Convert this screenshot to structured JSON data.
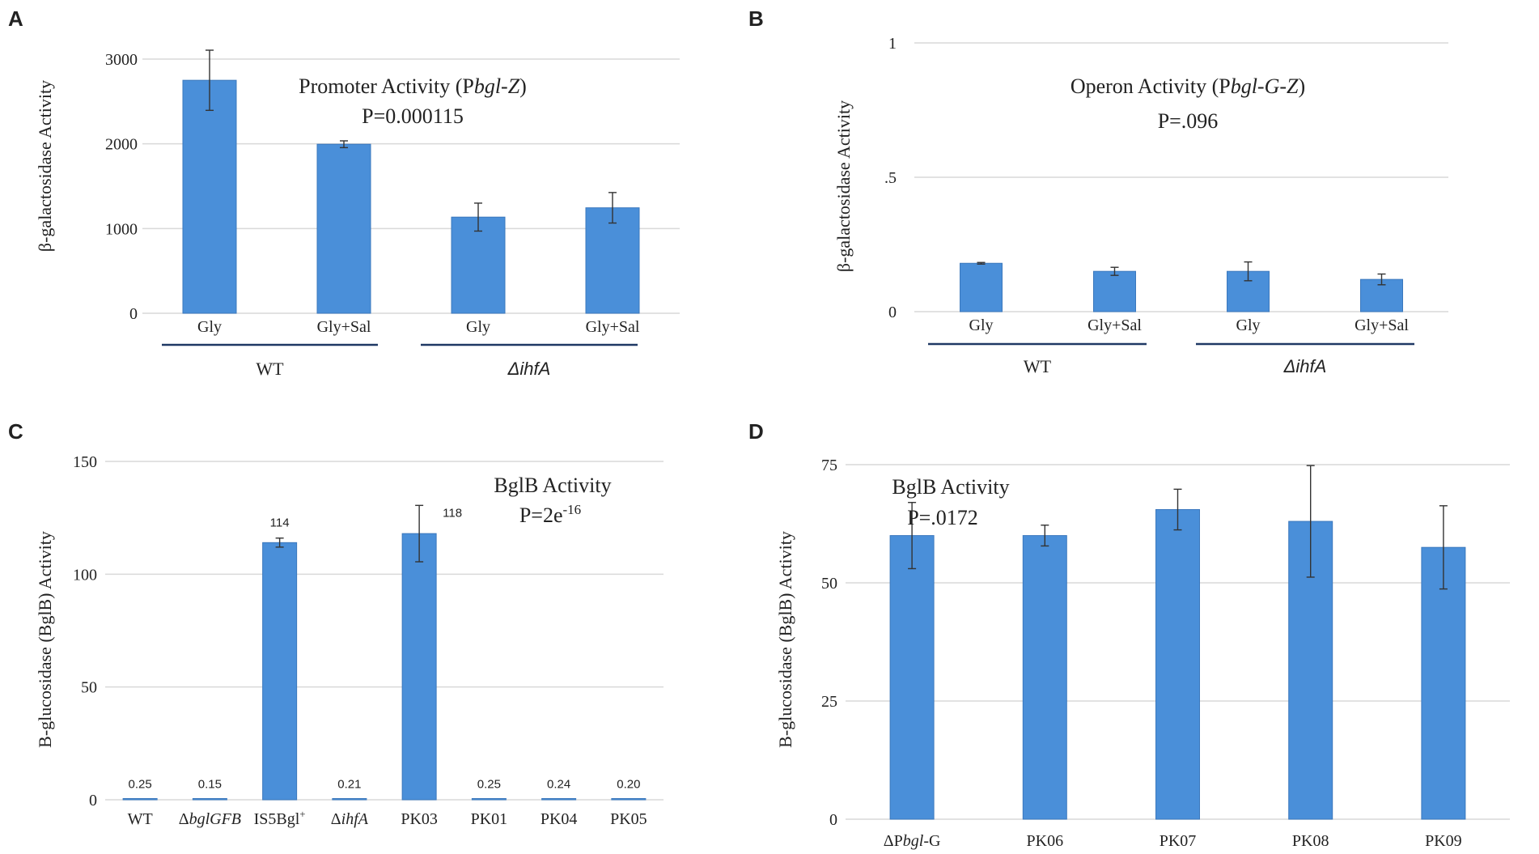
{
  "figure": {
    "panels": [
      {
        "letter": "A"
      },
      {
        "letter": "B"
      },
      {
        "letter": "C"
      },
      {
        "letter": "D"
      }
    ]
  },
  "colors": {
    "bar": "#4a8fd9",
    "bar_stroke": "#3b78bd",
    "grid": "#d9d9d9",
    "group_line": "#1f3864",
    "text": "#222222"
  },
  "chart_data": [
    {
      "panel": "A",
      "type": "bar",
      "title": "Promoter Activity (Pbgl-Z)",
      "title_parts": [
        "Promoter Activity (P",
        "bgl-Z",
        ")"
      ],
      "pvalue": "P=0.000115",
      "ylabel": "β-galactosidase Activity",
      "xlabel": "",
      "ylim": [
        0,
        3000
      ],
      "yticks": [
        0,
        1000,
        2000,
        3000
      ],
      "ytick_labels": [
        "0",
        "1000",
        "2000",
        "3000"
      ],
      "grid": true,
      "categories": [
        "Gly",
        "Gly+Sal",
        "Gly",
        "Gly+Sal"
      ],
      "values": [
        2750,
        1995,
        1135,
        1245
      ],
      "errors": [
        355,
        40,
        165,
        180
      ],
      "groups": [
        {
          "label": "WT",
          "italic": false,
          "members": [
            0,
            1
          ]
        },
        {
          "label": "ΔihfA",
          "italic": true,
          "members": [
            2,
            3
          ]
        }
      ]
    },
    {
      "panel": "B",
      "type": "bar",
      "title": "Operon Activity (Pbgl-G-Z)",
      "title_parts": [
        "Operon Activity (P",
        "bgl-G-Z",
        ")"
      ],
      "pvalue": "P=.096",
      "ylabel": "β-galactosidase Activity",
      "xlabel": "",
      "ylim": [
        0,
        1
      ],
      "yticks": [
        0,
        0.5,
        1
      ],
      "ytick_labels": [
        "0",
        ".5",
        "1"
      ],
      "grid": true,
      "categories": [
        "Gly",
        "Gly+Sal",
        "Gly",
        "Gly+Sal"
      ],
      "values": [
        0.18,
        0.15,
        0.15,
        0.12
      ],
      "errors": [
        0.003,
        0.015,
        0.035,
        0.02
      ],
      "groups": [
        {
          "label": "WT",
          "italic": false,
          "members": [
            0,
            1
          ]
        },
        {
          "label": "ΔihfA",
          "italic": true,
          "members": [
            2,
            3
          ]
        }
      ]
    },
    {
      "panel": "C",
      "type": "bar",
      "title": "BglB Activity",
      "pvalue_base": "P=2e",
      "pvalue_exp": "-16",
      "ylabel": "B-glucosidase (BglB) Activity",
      "xlabel": "",
      "ylim": [
        0,
        150
      ],
      "yticks": [
        0,
        50,
        100,
        150
      ],
      "ytick_labels": [
        "0",
        "50",
        "100",
        "150"
      ],
      "grid": true,
      "categories": [
        "WT",
        "ΔbglGFB",
        "IS5Bgl+",
        "ΔihfA",
        "PK03",
        "PK01",
        "PK04",
        "PK05"
      ],
      "category_parts": [
        {
          "pre": "WT",
          "it": "",
          "sup": ""
        },
        {
          "pre": "Δ",
          "it": "bglGFB",
          "sup": ""
        },
        {
          "pre": "IS5Bgl",
          "it": "",
          "sup": "+"
        },
        {
          "pre": "Δ",
          "it": "ihfA",
          "sup": ""
        },
        {
          "pre": "PK03",
          "it": "",
          "sup": ""
        },
        {
          "pre": "PK01",
          "it": "",
          "sup": ""
        },
        {
          "pre": "PK04",
          "it": "",
          "sup": ""
        },
        {
          "pre": "PK05",
          "it": "",
          "sup": ""
        }
      ],
      "values": [
        0.25,
        0.15,
        114,
        0.21,
        118,
        0.25,
        0.24,
        0.2
      ],
      "errors": [
        0,
        0,
        2,
        0,
        12.5,
        0,
        0,
        0
      ],
      "data_labels": [
        "0.25",
        "0.15",
        "114",
        "0.21",
        "118",
        "0.25",
        "0.24",
        "0.20"
      ]
    },
    {
      "panel": "D",
      "type": "bar",
      "title": "BglB Activity",
      "pvalue": "P=.0172",
      "ylabel": "B-glucosidase (BglB) Activity",
      "xlabel": "",
      "ylim": [
        0,
        75
      ],
      "yticks": [
        0,
        25,
        50,
        75
      ],
      "ytick_labels": [
        "0",
        "25",
        "50",
        "75"
      ],
      "grid": true,
      "categories": [
        "ΔPbgl-G",
        "PK06",
        "PK07",
        "PK08",
        "PK09"
      ],
      "category_parts": [
        {
          "pre": "ΔP",
          "it": "bgl",
          "post": "-G"
        },
        {
          "pre": "PK06",
          "it": "",
          "post": ""
        },
        {
          "pre": "PK07",
          "it": "",
          "post": ""
        },
        {
          "pre": "PK08",
          "it": "",
          "post": ""
        },
        {
          "pre": "PK09",
          "it": "",
          "post": ""
        }
      ],
      "values": [
        60,
        60,
        65.5,
        63,
        57.5
      ],
      "errors": [
        7,
        2.2,
        4.3,
        11.8,
        8.8
      ]
    }
  ]
}
